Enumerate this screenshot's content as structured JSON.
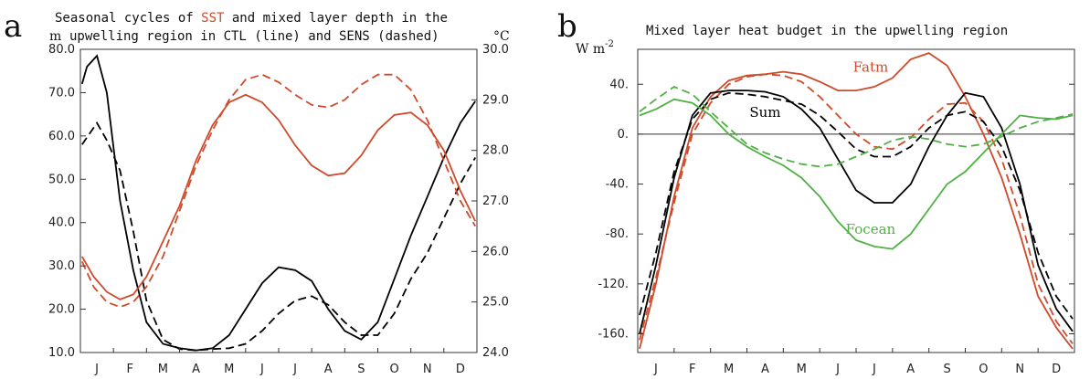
{
  "chart_data": [
    {
      "panel": "a",
      "type": "line",
      "title_line1_parts": [
        "Seasonal cycles of ",
        "SST",
        " and mixed layer depth in the"
      ],
      "title_line2": "upwelling region in CTL (line) and SENS (dashed)",
      "ylabel_left": "m",
      "ylabel_right": "°C",
      "categories": [
        "J",
        "F",
        "M",
        "A",
        "M",
        "J",
        "J",
        "A",
        "S",
        "O",
        "N",
        "D"
      ],
      "left_yticks": [
        "10.0",
        "20.0",
        "30.0",
        "40.0",
        "50.0",
        "60.0",
        "70.0",
        "80.0"
      ],
      "right_yticks": [
        "24.0",
        "25.0",
        "26.0",
        "27.0",
        "28.0",
        "29.0",
        "30.0"
      ],
      "xlim": [
        0,
        12
      ],
      "ylim_left": [
        10,
        80
      ],
      "ylim_right": [
        24,
        30
      ],
      "series": [
        {
          "color": "#000000",
          "dash": false,
          "axis": "left",
          "x": [
            0.05,
            0.2,
            0.5,
            0.8,
            1.2,
            1.6,
            2.0,
            2.5,
            3.0,
            3.5,
            4.0,
            4.5,
            5.0,
            5.5,
            6.0,
            6.5,
            7.0,
            7.5,
            8.0,
            8.5,
            9.0,
            9.5,
            10.0,
            10.5,
            11.0,
            11.5,
            11.95
          ],
          "y": [
            72,
            76,
            78.5,
            70,
            45,
            29,
            17,
            12,
            11,
            10.5,
            11,
            14,
            20,
            26,
            29.7,
            29,
            26.5,
            20,
            15,
            13,
            17,
            27,
            37,
            46,
            55,
            63,
            68
          ]
        },
        {
          "color": "#000000",
          "dash": true,
          "axis": "left",
          "x": [
            0.05,
            0.5,
            0.8,
            1.2,
            1.6,
            2.0,
            2.5,
            3.0,
            3.5,
            4.0,
            4.5,
            5.0,
            5.5,
            6.0,
            6.5,
            7.0,
            7.5,
            8.0,
            8.5,
            9.0,
            9.5,
            10.0,
            10.5,
            11.0,
            11.5,
            11.95
          ],
          "y": [
            58,
            63,
            59,
            52,
            38,
            22,
            13,
            10.8,
            10.5,
            10.8,
            11,
            12,
            15,
            19,
            22,
            23,
            21,
            17,
            14,
            14,
            19,
            27,
            33,
            41,
            49,
            55
          ]
        },
        {
          "color": "#cf4a2a",
          "dash": false,
          "axis": "right",
          "x": [
            0.05,
            0.4,
            0.8,
            1.2,
            1.6,
            2.0,
            2.5,
            3.0,
            3.5,
            4.0,
            4.5,
            5.0,
            5.5,
            6.0,
            6.5,
            7.0,
            7.5,
            8.0,
            8.5,
            9.0,
            9.5,
            10.0,
            10.5,
            11.0,
            11.5,
            11.95
          ],
          "y": [
            25.9,
            25.5,
            25.2,
            25.05,
            25.15,
            25.5,
            26.2,
            26.9,
            27.8,
            28.5,
            28.95,
            29.1,
            28.95,
            28.6,
            28.1,
            27.7,
            27.5,
            27.55,
            27.9,
            28.4,
            28.7,
            28.75,
            28.5,
            28.0,
            27.2,
            26.6
          ]
        },
        {
          "color": "#cf4a2a",
          "dash": true,
          "axis": "right",
          "x": [
            0.05,
            0.4,
            0.8,
            1.2,
            1.6,
            2.0,
            2.5,
            3.0,
            3.5,
            4.0,
            4.5,
            5.0,
            5.5,
            6.0,
            6.5,
            7.0,
            7.5,
            8.0,
            8.5,
            9.0,
            9.5,
            10.0,
            10.5,
            11.0,
            11.5,
            11.95
          ],
          "y": [
            25.8,
            25.3,
            25.0,
            24.9,
            25.0,
            25.3,
            25.9,
            26.8,
            27.7,
            28.4,
            29.0,
            29.4,
            29.5,
            29.35,
            29.1,
            28.9,
            28.85,
            29.0,
            29.3,
            29.5,
            29.5,
            29.2,
            28.6,
            27.8,
            27.0,
            26.5
          ]
        }
      ]
    },
    {
      "panel": "b",
      "type": "line",
      "title": "Mixed layer heat budget in the upwelling region",
      "ylabel": "W m",
      "ylabel_sup": "-2",
      "categories": [
        "J",
        "F",
        "M",
        "A",
        "M",
        "J",
        "J",
        "A",
        "S",
        "O",
        "N",
        "D"
      ],
      "yticks": [
        "-160.",
        "-120.",
        "-80.",
        "-40.",
        "0.",
        "40."
      ],
      "xlim": [
        0,
        12
      ],
      "ylim": [
        -175,
        68
      ],
      "zero_line": true,
      "annotations": [
        {
          "text": "Fatm",
          "color": "#cf4a2a",
          "x": 6.4,
          "y": 50
        },
        {
          "text": "Sum",
          "color": "#000000",
          "x": 3.5,
          "y": 14
        },
        {
          "text": "Focean",
          "color": "#4fb043",
          "x": 6.4,
          "y": -80
        }
      ],
      "series": [
        {
          "name": "Fatm",
          "color": "#cf4a2a",
          "dash": false,
          "x": [
            0.05,
            0.5,
            1.0,
            1.5,
            2.0,
            2.5,
            3.0,
            3.5,
            4.0,
            4.5,
            5.0,
            5.5,
            6.0,
            6.5,
            7.0,
            7.5,
            8.0,
            8.5,
            9.0,
            9.5,
            10.0,
            10.5,
            11.0,
            11.5,
            11.95
          ],
          "y": [
            -172,
            -120,
            -50,
            5,
            30,
            43,
            47,
            48,
            50,
            48,
            42,
            35,
            35,
            38,
            45,
            60,
            65,
            55,
            30,
            0,
            -35,
            -80,
            -130,
            -155,
            -172
          ]
        },
        {
          "name": "Fatm",
          "color": "#cf4a2a",
          "dash": true,
          "x": [
            0.05,
            0.5,
            1.0,
            1.5,
            2.0,
            2.5,
            3.0,
            3.5,
            4.0,
            4.5,
            5.0,
            5.5,
            6.0,
            6.5,
            7.0,
            7.5,
            8.0,
            8.5,
            9.0,
            9.5,
            10.0,
            10.5,
            11.0,
            11.5,
            11.95
          ],
          "y": [
            -165,
            -115,
            -55,
            0,
            25,
            40,
            46,
            48,
            47,
            42,
            30,
            15,
            0,
            -10,
            -12,
            -3,
            12,
            24,
            25,
            10,
            -20,
            -65,
            -120,
            -150,
            -168
          ]
        },
        {
          "name": "Sum",
          "color": "#000000",
          "dash": false,
          "x": [
            0.05,
            0.5,
            1.0,
            1.5,
            2.0,
            2.5,
            3.0,
            3.5,
            4.0,
            4.5,
            5.0,
            5.5,
            6.0,
            6.5,
            7.0,
            7.5,
            8.0,
            8.5,
            9.0,
            9.5,
            10.0,
            10.5,
            11.0,
            11.5,
            11.95
          ],
          "y": [
            -160,
            -105,
            -35,
            15,
            33,
            35,
            35,
            34,
            30,
            20,
            5,
            -20,
            -45,
            -55,
            -55,
            -40,
            -10,
            15,
            33,
            30,
            5,
            -40,
            -105,
            -140,
            -158
          ]
        },
        {
          "name": "Sum",
          "color": "#000000",
          "dash": true,
          "x": [
            0.05,
            0.5,
            1.0,
            1.5,
            2.0,
            2.5,
            3.0,
            3.5,
            4.0,
            4.5,
            5.0,
            5.5,
            6.0,
            6.5,
            7.0,
            7.5,
            8.0,
            8.5,
            9.0,
            9.5,
            10.0,
            10.5,
            11.0,
            11.5,
            11.95
          ],
          "y": [
            -145,
            -95,
            -30,
            12,
            28,
            33,
            32,
            30,
            27,
            24,
            15,
            2,
            -12,
            -18,
            -18,
            -10,
            5,
            15,
            18,
            10,
            -10,
            -45,
            -95,
            -130,
            -148
          ]
        },
        {
          "name": "Focean",
          "color": "#4fb043",
          "dash": false,
          "x": [
            0.05,
            0.5,
            1.0,
            1.5,
            2.0,
            2.5,
            3.0,
            3.5,
            4.0,
            4.5,
            5.0,
            5.5,
            6.0,
            6.5,
            7.0,
            7.5,
            8.0,
            8.5,
            9.0,
            9.5,
            10.0,
            10.5,
            11.0,
            11.5,
            11.95
          ],
          "y": [
            15,
            20,
            28,
            25,
            15,
            0,
            -10,
            -18,
            -25,
            -35,
            -50,
            -70,
            -85,
            -90,
            -92,
            -80,
            -60,
            -40,
            -30,
            -15,
            0,
            15,
            13,
            12,
            15
          ]
        },
        {
          "name": "Focean",
          "color": "#4fb043",
          "dash": true,
          "x": [
            0.05,
            0.5,
            1.0,
            1.5,
            2.0,
            2.5,
            3.0,
            3.5,
            4.0,
            4.5,
            5.0,
            5.5,
            6.0,
            6.5,
            7.0,
            7.5,
            8.0,
            8.5,
            9.0,
            9.5,
            10.0,
            10.5,
            11.0,
            11.5,
            11.95
          ],
          "y": [
            18,
            28,
            38,
            32,
            18,
            5,
            -8,
            -15,
            -20,
            -24,
            -26,
            -24,
            -18,
            -12,
            -5,
            -2,
            -4,
            -8,
            -10,
            -8,
            -2,
            5,
            10,
            13,
            16
          ]
        }
      ]
    }
  ]
}
